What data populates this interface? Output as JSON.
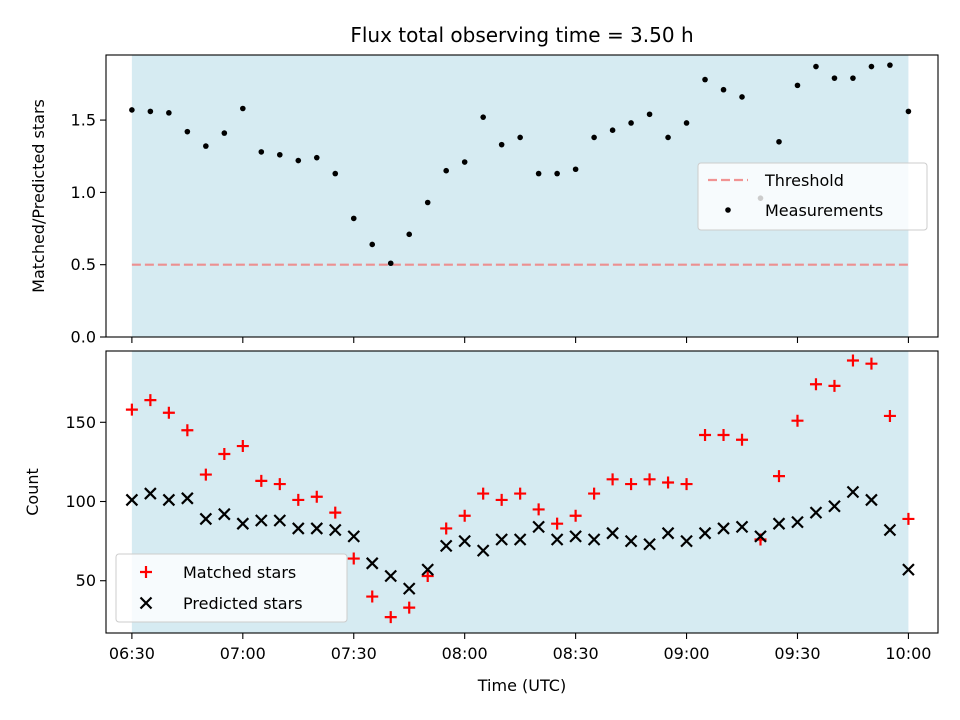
{
  "chart_data": [
    {
      "type": "scatter",
      "title": "Flux total observing time = 3.50 h",
      "ylabel": "Matched/Predicted stars",
      "ylim": [
        0,
        1.95
      ],
      "yticks": [
        "0.0",
        "0.5",
        "1.0",
        "1.5"
      ],
      "ytick_values": [
        0.0,
        0.5,
        1.0,
        1.5
      ],
      "xlim": [
        "06:23",
        "10:08"
      ],
      "observing_window": [
        "06:30",
        "10:00"
      ],
      "legend": {
        "placement": "center-right",
        "entries": [
          "Threshold",
          "Measurements"
        ]
      },
      "threshold": {
        "name": "Threshold",
        "value": 0.5,
        "style": "dashed",
        "color": "#f08080"
      },
      "series": [
        {
          "name": "Measurements",
          "color": "#000000",
          "marker": "dot",
          "x": [
            "06:30",
            "06:35",
            "06:40",
            "06:45",
            "06:50",
            "06:55",
            "07:00",
            "07:05",
            "07:10",
            "07:15",
            "07:20",
            "07:25",
            "07:30",
            "07:35",
            "07:40",
            "07:45",
            "07:50",
            "07:55",
            "08:00",
            "08:05",
            "08:10",
            "08:15",
            "08:20",
            "08:25",
            "08:30",
            "08:35",
            "08:40",
            "08:45",
            "08:50",
            "08:55",
            "09:00",
            "09:05",
            "09:10",
            "09:15",
            "09:20",
            "09:25",
            "09:30",
            "09:35",
            "09:40",
            "09:45",
            "09:50",
            "09:55",
            "10:00"
          ],
          "y": [
            1.57,
            1.56,
            1.55,
            1.42,
            1.32,
            1.41,
            1.58,
            1.28,
            1.26,
            1.22,
            1.24,
            1.13,
            0.82,
            0.64,
            0.51,
            0.71,
            0.93,
            1.15,
            1.21,
            1.52,
            1.33,
            1.38,
            1.13,
            1.13,
            1.16,
            1.38,
            1.43,
            1.48,
            1.54,
            1.38,
            1.48,
            1.78,
            1.71,
            1.66,
            0.96,
            1.35,
            1.74,
            1.87,
            1.79,
            1.79,
            1.87,
            1.88,
            1.56
          ]
        }
      ]
    },
    {
      "type": "scatter",
      "ylabel": "Count",
      "xlabel": "Time (UTC)",
      "ylim": [
        17,
        195
      ],
      "yticks": [
        "50",
        "100",
        "150"
      ],
      "ytick_values": [
        50,
        100,
        150
      ],
      "xlim": [
        "06:23",
        "10:08"
      ],
      "xticks": [
        "06:30",
        "07:00",
        "07:30",
        "08:00",
        "08:30",
        "09:00",
        "09:30",
        "10:00"
      ],
      "observing_window": [
        "06:30",
        "10:00"
      ],
      "legend": {
        "placement": "lower-left",
        "entries": [
          "Matched stars",
          "Predicted stars"
        ]
      },
      "series": [
        {
          "name": "Matched stars",
          "color": "#ff0000",
          "marker": "plus",
          "x": [
            "06:30",
            "06:35",
            "06:40",
            "06:45",
            "06:50",
            "06:55",
            "07:00",
            "07:05",
            "07:10",
            "07:15",
            "07:20",
            "07:25",
            "07:30",
            "07:35",
            "07:40",
            "07:45",
            "07:50",
            "07:55",
            "08:00",
            "08:05",
            "08:10",
            "08:15",
            "08:20",
            "08:25",
            "08:30",
            "08:35",
            "08:40",
            "08:45",
            "08:50",
            "08:55",
            "09:00",
            "09:05",
            "09:10",
            "09:15",
            "09:20",
            "09:25",
            "09:30",
            "09:35",
            "09:40",
            "09:45",
            "09:50",
            "09:55",
            "10:00"
          ],
          "y": [
            158,
            164,
            156,
            145,
            117,
            130,
            135,
            113,
            111,
            101,
            103,
            93,
            64,
            40,
            27,
            33,
            53,
            83,
            91,
            105,
            101,
            105,
            95,
            86,
            91,
            105,
            114,
            111,
            114,
            112,
            111,
            142,
            142,
            139,
            76,
            116,
            151,
            174,
            173,
            189,
            187,
            154,
            89
          ]
        },
        {
          "name": "Predicted stars",
          "color": "#000000",
          "marker": "x",
          "x": [
            "06:30",
            "06:35",
            "06:40",
            "06:45",
            "06:50",
            "06:55",
            "07:00",
            "07:05",
            "07:10",
            "07:15",
            "07:20",
            "07:25",
            "07:30",
            "07:35",
            "07:40",
            "07:45",
            "07:50",
            "07:55",
            "08:00",
            "08:05",
            "08:10",
            "08:15",
            "08:20",
            "08:25",
            "08:30",
            "08:35",
            "08:40",
            "08:45",
            "08:50",
            "08:55",
            "09:00",
            "09:05",
            "09:10",
            "09:15",
            "09:20",
            "09:25",
            "09:30",
            "09:35",
            "09:40",
            "09:45",
            "09:50",
            "09:55",
            "10:00"
          ],
          "y": [
            101,
            105,
            101,
            102,
            89,
            92,
            86,
            88,
            88,
            83,
            83,
            82,
            78,
            61,
            53,
            45,
            57,
            72,
            75,
            69,
            76,
            76,
            84,
            76,
            78,
            76,
            80,
            75,
            73,
            80,
            75,
            80,
            83,
            84,
            78,
            86,
            87,
            93,
            97,
            106,
            101,
            82,
            57
          ]
        }
      ]
    }
  ]
}
